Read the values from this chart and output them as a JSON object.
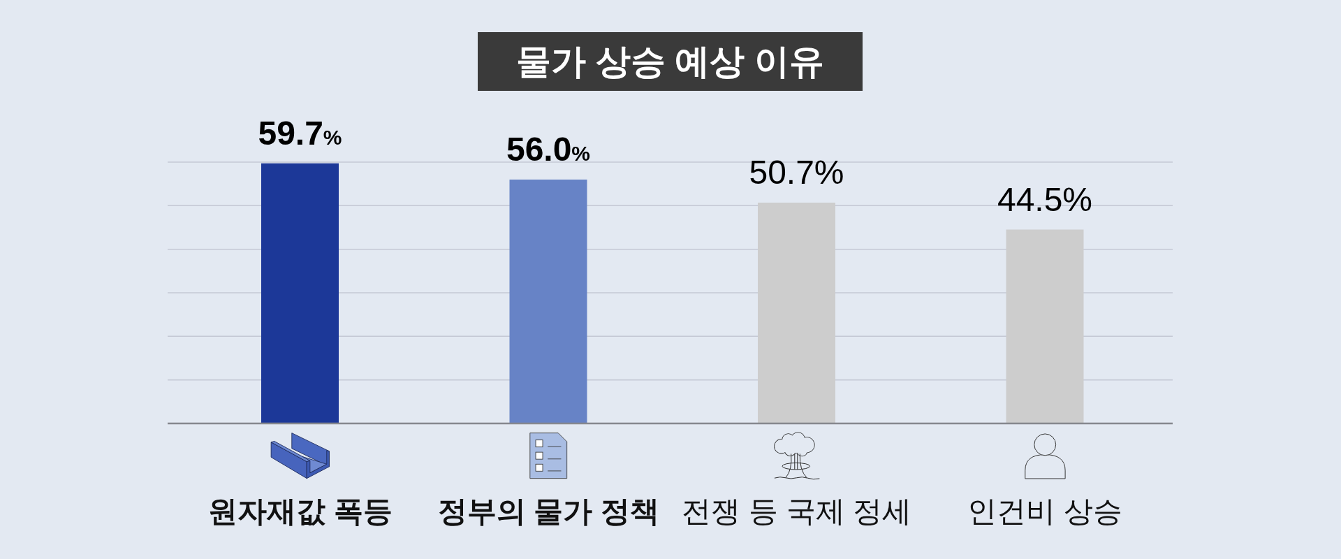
{
  "chart_data": {
    "type": "bar",
    "title": "물가 상승 예상 이유",
    "categories": [
      "원자재값 폭등",
      "정부의 물가 정책",
      "전쟁 등 국제 정세",
      "인건비 상승"
    ],
    "values": [
      59.7,
      56.0,
      50.7,
      44.5
    ],
    "colors": [
      "#1c3898",
      "#6783c6",
      "#cdcdcd",
      "#cdcdcd"
    ],
    "value_labels": [
      "59.7%",
      "56.0%",
      "50.7%",
      "44.5%"
    ],
    "ylim": [
      0,
      60
    ],
    "yticks": [
      {
        "value": 0,
        "label": null
      },
      {
        "value": 10,
        "label": null
      },
      {
        "value": 20,
        "label": null
      },
      {
        "value": 30,
        "label": null
      },
      {
        "value": 40,
        "label": null
      },
      {
        "value": 50,
        "label": null
      },
      {
        "value": 60,
        "label": null
      }
    ],
    "grid": "y",
    "tick_labels": "x"
  }
}
